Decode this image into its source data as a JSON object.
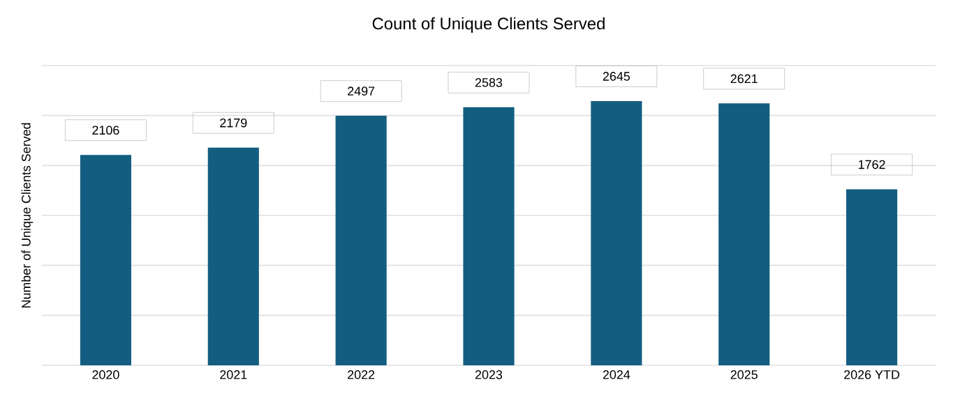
{
  "chart_data": {
    "type": "bar",
    "title": "Count of Unique Clients Served",
    "ylabel": "Number of Unique Clients Served",
    "categories": [
      "2020",
      "2021",
      "2022",
      "2023",
      "2024",
      "2025",
      "2026 YTD"
    ],
    "values": [
      2106,
      2179,
      2497,
      2583,
      2645,
      2621,
      1762
    ],
    "color": "#135e80",
    "ylim": [
      0,
      3000
    ],
    "yticks": [
      {
        "value": 0,
        "label": null
      },
      {
        "value": 500,
        "label": null
      },
      {
        "value": 1000,
        "label": null
      },
      {
        "value": 1500,
        "label": null
      },
      {
        "value": 2000,
        "label": null
      },
      {
        "value": 2500,
        "label": null
      },
      {
        "value": 3000,
        "label": null
      }
    ],
    "tick_labels": "x",
    "grid": "y",
    "data_labels": true
  }
}
